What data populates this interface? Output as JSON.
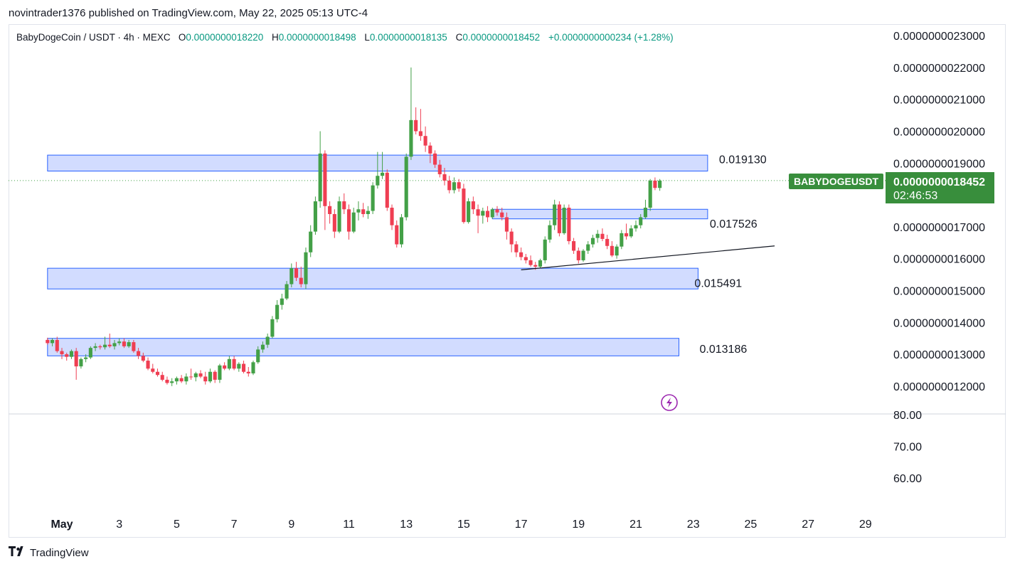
{
  "header": {
    "publisher_line": "novintrader1376 published on TradingView.com, May 22, 2025 05:13 UTC-4"
  },
  "legend": {
    "symbol_line": "BabyDogeCoin / USDT · 4h · MEXC",
    "open_label": "O",
    "open": "0.0000000018220",
    "high_label": "H",
    "high": "0.0000000018498",
    "low_label": "L",
    "low": "0.0000000018135",
    "close_label": "C",
    "close": "0.0000000018452",
    "change": "+0.0000000000234 (+1.28%)"
  },
  "price_badge": {
    "symbol": "BABYDOGEUSDT",
    "price": "0.0000000018452",
    "countdown": "02:46:53",
    "color": "#388e3c"
  },
  "footer": {
    "brand": "TradingView",
    "logo_icon": "tradingview-logo-icon"
  },
  "indicator_icon": "lightning-icon",
  "colors": {
    "up": "#43a047",
    "down": "#ef3e52",
    "zone_fill": "#d2dcff",
    "zone_border": "#2962ff"
  },
  "chart_data": {
    "type": "candlestick",
    "timeframe": "4h",
    "price_axis": {
      "ticks": [
        "0.0000000023000",
        "0.0000000022000",
        "0.0000000021000",
        "0.0000000020000",
        "0.0000000019000",
        "0.0000000017000",
        "0.0000000016000",
        "0.0000000015000",
        "0.0000000014000",
        "0.0000000013000",
        "0.0000000012000"
      ],
      "tick_values": [
        23,
        22,
        21,
        20,
        19,
        17,
        16,
        15,
        14,
        13,
        12
      ],
      "unit_scale": "1e-10",
      "range": [
        11.5,
        23.5
      ]
    },
    "oscillator_axis": {
      "ticks": [
        "80.00",
        "70.00",
        "60.00"
      ],
      "tick_values": [
        80,
        70,
        60
      ]
    },
    "time_axis": {
      "labels": [
        "May",
        "3",
        "5",
        "7",
        "9",
        "11",
        "13",
        "15",
        "17",
        "19",
        "21",
        "23",
        "25",
        "27",
        "29"
      ],
      "dates": [
        "2025-05-01",
        "2025-05-03",
        "2025-05-05",
        "2025-05-07",
        "2025-05-09",
        "2025-05-11",
        "2025-05-13",
        "2025-05-15",
        "2025-05-17",
        "2025-05-19",
        "2025-05-21",
        "2025-05-23",
        "2025-05-25",
        "2025-05-27",
        "2025-05-29"
      ]
    },
    "zones": [
      {
        "label": "0.019130",
        "top": 19.25,
        "bottom": 18.75,
        "start": "2025-04-30T12:00",
        "end": "2025-05-23T12:00"
      },
      {
        "label": "0.017526",
        "top": 17.55,
        "bottom": 17.25,
        "start": "2025-05-16T00:00",
        "end": "2025-05-23T12:00"
      },
      {
        "label": "0.015491",
        "top": 15.7,
        "bottom": 15.05,
        "start": "2025-04-30T12:00",
        "end": "2025-05-23T04:00"
      },
      {
        "label": "0.013186",
        "top": 13.5,
        "bottom": 12.95,
        "start": "2025-04-30T12:00",
        "end": "2025-05-22T12:00"
      }
    ],
    "trendline": {
      "from": [
        "2025-05-17T00:00",
        15.65
      ],
      "to": [
        "2025-05-25T20:00",
        16.4
      ]
    },
    "last_price": 18.452,
    "candles": [
      [
        13.45,
        13.52,
        13.3,
        13.35
      ],
      [
        13.35,
        13.5,
        13.25,
        13.45
      ],
      [
        13.45,
        13.55,
        13.05,
        13.1
      ],
      [
        13.1,
        13.2,
        12.85,
        13.0
      ],
      [
        13.0,
        13.05,
        12.8,
        12.92
      ],
      [
        12.92,
        13.15,
        12.85,
        13.1
      ],
      [
        13.1,
        13.2,
        12.2,
        12.62
      ],
      [
        12.62,
        12.9,
        12.55,
        12.85
      ],
      [
        12.85,
        13.0,
        12.75,
        12.9
      ],
      [
        12.9,
        13.25,
        12.85,
        13.2
      ],
      [
        13.2,
        13.35,
        13.1,
        13.25
      ],
      [
        13.25,
        13.3,
        13.15,
        13.22
      ],
      [
        13.22,
        13.55,
        13.15,
        13.3
      ],
      [
        13.3,
        13.65,
        13.2,
        13.25
      ],
      [
        13.25,
        13.45,
        13.15,
        13.35
      ],
      [
        13.35,
        13.5,
        13.28,
        13.4
      ],
      [
        13.4,
        13.5,
        13.2,
        13.25
      ],
      [
        13.25,
        13.45,
        13.2,
        13.38
      ],
      [
        13.38,
        13.45,
        13.05,
        13.1
      ],
      [
        13.1,
        13.2,
        12.85,
        12.95
      ],
      [
        12.95,
        13.05,
        12.75,
        12.8
      ],
      [
        12.8,
        12.9,
        12.5,
        12.55
      ],
      [
        12.55,
        12.7,
        12.4,
        12.45
      ],
      [
        12.45,
        12.55,
        12.3,
        12.35
      ],
      [
        12.35,
        12.45,
        12.15,
        12.2
      ],
      [
        12.2,
        12.3,
        12.05,
        12.1
      ],
      [
        12.1,
        12.25,
        12.0,
        12.15
      ],
      [
        12.15,
        12.3,
        12.05,
        12.25
      ],
      [
        12.25,
        12.35,
        12.1,
        12.15
      ],
      [
        12.15,
        12.4,
        12.05,
        12.3
      ],
      [
        12.3,
        12.55,
        12.2,
        12.28
      ],
      [
        12.28,
        12.45,
        12.15,
        12.4
      ],
      [
        12.4,
        12.5,
        12.25,
        12.3
      ],
      [
        12.3,
        12.45,
        12.05,
        12.15
      ],
      [
        12.15,
        12.55,
        12.1,
        12.45
      ],
      [
        12.45,
        12.5,
        12.1,
        12.2
      ],
      [
        12.2,
        12.7,
        12.1,
        12.65
      ],
      [
        12.65,
        12.75,
        12.5,
        12.55
      ],
      [
        12.55,
        12.95,
        12.5,
        12.85
      ],
      [
        12.85,
        12.95,
        12.5,
        12.55
      ],
      [
        12.55,
        12.75,
        12.45,
        12.7
      ],
      [
        12.7,
        12.8,
        12.4,
        12.45
      ],
      [
        12.45,
        12.6,
        12.3,
        12.4
      ],
      [
        12.4,
        12.8,
        12.35,
        12.75
      ],
      [
        12.75,
        13.25,
        12.7,
        13.15
      ],
      [
        13.15,
        13.4,
        13.05,
        13.3
      ],
      [
        13.3,
        13.65,
        13.2,
        13.55
      ],
      [
        13.55,
        14.2,
        13.5,
        14.1
      ],
      [
        14.1,
        14.7,
        14.0,
        14.55
      ],
      [
        14.55,
        14.9,
        14.4,
        14.75
      ],
      [
        14.75,
        15.3,
        14.7,
        15.2
      ],
      [
        15.2,
        15.85,
        15.1,
        15.7
      ],
      [
        15.7,
        15.9,
        15.3,
        15.4
      ],
      [
        15.4,
        15.75,
        15.1,
        15.2
      ],
      [
        15.2,
        16.35,
        15.05,
        16.2
      ],
      [
        16.2,
        17.05,
        16.05,
        16.85
      ],
      [
        16.85,
        17.95,
        16.75,
        17.8
      ],
      [
        17.8,
        20.0,
        17.6,
        19.3
      ],
      [
        19.3,
        19.4,
        16.9,
        17.65
      ],
      [
        17.65,
        17.8,
        17.1,
        17.4
      ],
      [
        17.4,
        17.55,
        16.65,
        16.85
      ],
      [
        16.85,
        17.95,
        16.8,
        17.8
      ],
      [
        17.8,
        18.05,
        17.4,
        17.55
      ],
      [
        17.55,
        17.7,
        16.6,
        16.85
      ],
      [
        16.85,
        17.6,
        16.8,
        17.45
      ],
      [
        17.45,
        17.8,
        17.2,
        17.55
      ],
      [
        17.55,
        17.75,
        17.3,
        17.4
      ],
      [
        17.4,
        17.65,
        17.25,
        17.5
      ],
      [
        17.5,
        18.4,
        17.4,
        18.3
      ],
      [
        18.3,
        19.35,
        18.2,
        18.6
      ],
      [
        18.6,
        19.35,
        18.5,
        18.7
      ],
      [
        18.7,
        18.8,
        17.5,
        17.6
      ],
      [
        17.6,
        17.7,
        16.9,
        17.05
      ],
      [
        17.05,
        17.2,
        16.35,
        16.45
      ],
      [
        16.45,
        17.4,
        16.35,
        17.3
      ],
      [
        17.3,
        19.3,
        17.2,
        19.2
      ],
      [
        19.2,
        22.0,
        19.1,
        20.35
      ],
      [
        20.35,
        20.75,
        19.9,
        20.0
      ],
      [
        20.0,
        20.7,
        19.7,
        19.85
      ],
      [
        19.85,
        20.15,
        19.35,
        19.55
      ],
      [
        19.55,
        19.65,
        19.0,
        19.3
      ],
      [
        19.3,
        19.4,
        18.85,
        18.95
      ],
      [
        18.95,
        19.1,
        18.55,
        18.65
      ],
      [
        18.65,
        18.85,
        18.3,
        18.45
      ],
      [
        18.45,
        18.6,
        18.05,
        18.15
      ],
      [
        18.15,
        18.55,
        18.05,
        18.4
      ],
      [
        18.4,
        18.5,
        18.1,
        18.2
      ],
      [
        18.2,
        18.35,
        17.1,
        17.15
      ],
      [
        17.15,
        17.9,
        17.1,
        17.8
      ],
      [
        17.8,
        17.95,
        17.4,
        17.55
      ],
      [
        17.55,
        17.7,
        16.8,
        17.35
      ],
      [
        17.35,
        17.6,
        17.1,
        17.5
      ],
      [
        17.5,
        17.65,
        17.15,
        17.3
      ],
      [
        17.3,
        17.6,
        17.25,
        17.55
      ],
      [
        17.55,
        17.65,
        17.35,
        17.45
      ],
      [
        17.45,
        17.6,
        17.2,
        17.3
      ],
      [
        17.3,
        17.45,
        16.6,
        16.85
      ],
      [
        16.85,
        16.95,
        16.2,
        16.45
      ],
      [
        16.45,
        16.55,
        16.05,
        16.2
      ],
      [
        16.2,
        16.35,
        15.95,
        16.05
      ],
      [
        16.05,
        16.15,
        15.85,
        15.95
      ],
      [
        15.95,
        16.1,
        15.75,
        15.8
      ],
      [
        15.8,
        15.9,
        15.65,
        15.75
      ],
      [
        15.75,
        16.0,
        15.7,
        15.95
      ],
      [
        15.95,
        16.7,
        15.85,
        16.6
      ],
      [
        16.6,
        17.2,
        16.5,
        17.05
      ],
      [
        17.05,
        17.85,
        16.9,
        17.7
      ],
      [
        17.7,
        17.8,
        16.7,
        16.8
      ],
      [
        16.8,
        17.7,
        16.75,
        17.6
      ],
      [
        17.6,
        17.7,
        16.45,
        16.55
      ],
      [
        16.55,
        16.65,
        16.15,
        16.25
      ],
      [
        16.25,
        16.35,
        15.85,
        15.95
      ],
      [
        15.95,
        16.3,
        15.9,
        16.25
      ],
      [
        16.25,
        16.55,
        16.15,
        16.45
      ],
      [
        16.45,
        16.75,
        16.35,
        16.65
      ],
      [
        16.65,
        16.9,
        16.5,
        16.78
      ],
      [
        16.78,
        16.95,
        16.55,
        16.62
      ],
      [
        16.62,
        16.75,
        16.3,
        16.4
      ],
      [
        16.4,
        16.55,
        16.05,
        16.1
      ],
      [
        16.1,
        16.45,
        16.0,
        16.38
      ],
      [
        16.38,
        16.9,
        16.3,
        16.8
      ],
      [
        16.8,
        17.1,
        16.6,
        16.7
      ],
      [
        16.7,
        17.05,
        16.65,
        16.95
      ],
      [
        16.95,
        17.2,
        16.85,
        17.05
      ],
      [
        17.05,
        17.4,
        16.95,
        17.3
      ],
      [
        17.3,
        17.85,
        17.25,
        17.6
      ],
      [
        17.6,
        18.5,
        17.5,
        18.45
      ],
      [
        18.45,
        18.55,
        18.15,
        18.22
      ],
      [
        18.22,
        18.5,
        18.13,
        18.45
      ]
    ]
  }
}
